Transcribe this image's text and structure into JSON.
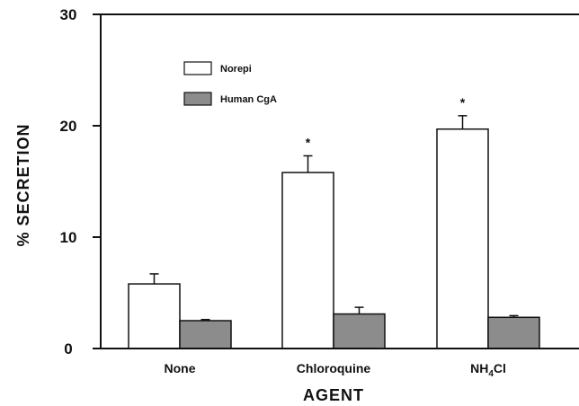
{
  "chart_data": {
    "type": "bar",
    "title": "",
    "xlabel": "AGENT",
    "ylabel": "% SECRETION",
    "ylim": [
      0,
      30
    ],
    "yticks": [
      0,
      10,
      20,
      30
    ],
    "grid": false,
    "legend_position": "top-left",
    "categories": [
      "None",
      "Chloroquine",
      "NH4Cl"
    ],
    "category_display": [
      {
        "main": "None",
        "sub": "",
        "tail": ""
      },
      {
        "main": "Chloroquine",
        "sub": "",
        "tail": ""
      },
      {
        "main": "NH",
        "sub": "4",
        "tail": "Cl"
      }
    ],
    "series": [
      {
        "name": "Norepi",
        "values": [
          5.8,
          15.8,
          19.7
        ],
        "errors": [
          0.9,
          1.5,
          1.2
        ],
        "color": "#ffffff"
      },
      {
        "name": "Human  CgA",
        "values": [
          2.5,
          3.1,
          2.8
        ],
        "errors": [
          0.1,
          0.6,
          0.15
        ],
        "color": "#8c8c8c"
      }
    ],
    "significance": [
      {
        "series": 0,
        "category": 0,
        "label": ""
      },
      {
        "series": 0,
        "category": 1,
        "label": "*"
      },
      {
        "series": 0,
        "category": 2,
        "label": "*"
      }
    ]
  }
}
